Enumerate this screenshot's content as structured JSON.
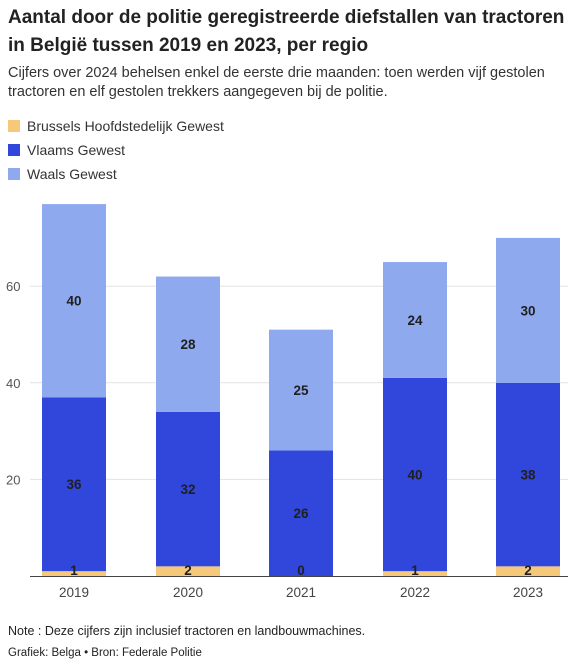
{
  "title": "Aantal door de politie geregistreerde diefstallen van tractoren in België tussen 2019 en 2023, per regio",
  "subtitle": "Cijfers over 2024 behelsen enkel de eerste drie maanden: toen werden vijf gestolen tractoren en elf gestolen trekkers aangegeven bij de politie.",
  "note": "Note : Deze cijfers zijn inclusief tractoren en landbouwmachines.",
  "source": "Grafiek: Belga • Bron: Federale Politie",
  "chart_data": {
    "type": "bar",
    "stacked": true,
    "categories": [
      "2019",
      "2020",
      "2021",
      "2022",
      "2023"
    ],
    "series": [
      {
        "name": "Brussels Hoofdstedelijk Gewest",
        "values": [
          1,
          2,
          0,
          1,
          2
        ],
        "color": "#f5c87a"
      },
      {
        "name": "Vlaams Gewest",
        "values": [
          36,
          32,
          26,
          40,
          38
        ],
        "color": "#3147db"
      },
      {
        "name": "Waals Gewest",
        "values": [
          40,
          28,
          25,
          24,
          30
        ],
        "color": "#8fa9ef"
      }
    ],
    "yticks": [
      20,
      40,
      60
    ],
    "ylim": [
      0,
      80
    ],
    "grid": true,
    "legend": "top-left"
  }
}
